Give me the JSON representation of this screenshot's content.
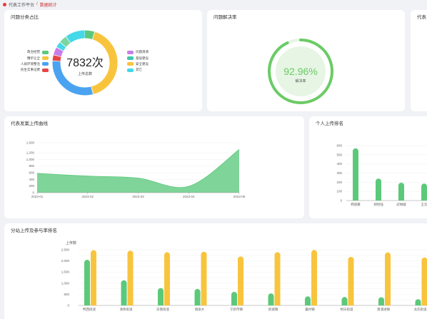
{
  "breadcrumb": {
    "root": "代表工作平台",
    "separator": "/",
    "current": "数据统计"
  },
  "colors": {
    "green": "#5cc97a",
    "yellow": "#f9c43d",
    "blue": "#4aa3f0",
    "red": "#e64545",
    "purple": "#c77ee8",
    "cyan": "#45d8e8",
    "teal": "#3fc7a8"
  },
  "category_card": {
    "title": "问题分类占比",
    "center_value": "7832次",
    "center_label": "上传总数",
    "legend_left": [
      {
        "label": "政治经营",
        "color": "#5cc97a"
      },
      {
        "label": "糟乎让全",
        "color": "#f9c43d"
      },
      {
        "label": "人居环境整治",
        "color": "#4aa3f0"
      },
      {
        "label": "民生实事记费",
        "color": "#e64545"
      }
    ],
    "legend_right": [
      {
        "label": "问题清清",
        "color": "#c77ee8"
      },
      {
        "label": "基层建设",
        "color": "#3fc7a8"
      },
      {
        "label": "安全建设",
        "color": "#f9c43d"
      },
      {
        "label": "其它",
        "color": "#45d8e8"
      }
    ]
  },
  "resolve_card": {
    "title": "问题解决率",
    "value": "92.96%",
    "label": "解决率",
    "rate": 0.9296
  },
  "third_card": {
    "title_fragment": "代表"
  },
  "trend_card": {
    "title": "代表发案上传曲线"
  },
  "rank_card": {
    "title": "个人上传排名"
  },
  "station_card": {
    "title": "分站上传及参与率排名",
    "unit_label": "上传数"
  },
  "chart_data": [
    {
      "type": "pie",
      "title": "问题分类占比",
      "labels": [
        "政治经营",
        "糟乎让全",
        "人居环境整治",
        "民生实事记费",
        "问题清清",
        "基层建设",
        "安全建设",
        "其它"
      ],
      "values": [
        5,
        41,
        30,
        3,
        4,
        3,
        4,
        10
      ]
    },
    {
      "type": "area",
      "title": "代表发案上传曲线",
      "x": [
        "2023-01",
        "2023-02",
        "2023-03",
        "2023-04",
        "2023-05"
      ],
      "values": [
        580,
        500,
        440,
        190,
        1300
      ],
      "ylim": [
        0,
        1500
      ],
      "yticks": [
        0,
        200,
        400,
        600,
        800,
        1000,
        1200,
        1500
      ],
      "ytick_labels": [
        "0",
        "200",
        "400",
        "600",
        "800",
        "1,000",
        "1,200",
        "1,500"
      ]
    },
    {
      "type": "bar",
      "title": "个人上传排名",
      "categories": [
        "韩丽聚",
        "郑悦强",
        "武琳璇",
        "王云"
      ],
      "values": [
        570,
        240,
        195,
        185
      ],
      "ylim": [
        0,
        600
      ],
      "yticks": [
        0,
        100,
        200,
        300,
        400,
        500,
        600
      ]
    },
    {
      "type": "bar",
      "title": "分站上传及参与率排名",
      "ylabel": "上传数",
      "categories": [
        "鸭西街道",
        "清余街道",
        "日南街道",
        "镜泉乡",
        "宁新市镇",
        "新城镇",
        "襄村镇",
        "桥乐街道",
        "萧浦进镇",
        "龙氏街道"
      ],
      "series": [
        {
          "values": [
            2050,
            1130,
            780,
            740,
            610,
            540,
            410,
            380,
            370,
            280
          ]
        },
        {
          "values": [
            2480,
            2460,
            2390,
            2410,
            2200,
            2390,
            2490,
            2180,
            2380,
            2150
          ]
        }
      ],
      "ylim": [
        0,
        2500
      ],
      "yticks": [
        0,
        250,
        500,
        750,
        1000,
        1250,
        1500,
        1750,
        2000,
        2250,
        2500
      ],
      "ytick_labels": [
        "0",
        "",
        "500",
        "",
        "1,000",
        "",
        "1,500",
        "",
        "2,000",
        "",
        "2,500"
      ]
    }
  ]
}
